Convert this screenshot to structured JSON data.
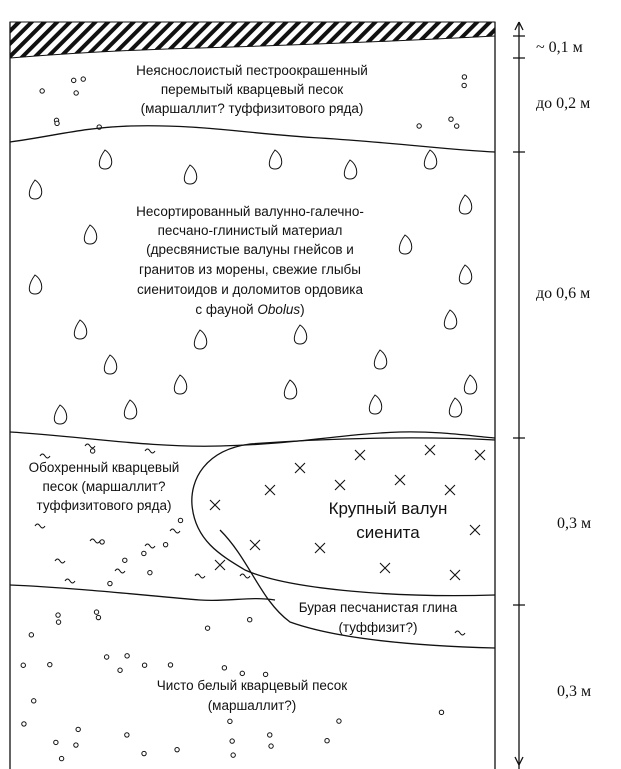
{
  "layers": [
    {
      "lines": [
        "Неяснослоистый пестроокрашенный",
        "перемытый кварцевый песок",
        "(маршаллит? туффизитового ряда)"
      ]
    },
    {
      "lines": [
        "Несортированный валунно-галечно-",
        "песчано-глинистый материал",
        "(дресвянистые валуны гнейсов и",
        "гранитов из морены, свежие глыбы",
        "сиенитоидов и доломитов ордовика"
      ],
      "last_line": [
        "с фауной ",
        "Obolus",
        ")"
      ]
    },
    {
      "lines": [
        "Обохренный кварцевый",
        "песок (маршаллит?",
        "туффизитового ряда)"
      ]
    },
    {
      "lines": [
        "Крупный валун",
        "сиенита"
      ]
    },
    {
      "lines": [
        "Бурая песчанистая глина",
        "(туффизит?)"
      ]
    },
    {
      "lines": [
        "Чисто белый кварцевый песок",
        "(маршаллит?)"
      ]
    }
  ],
  "scale": [
    "~ 0,1 м",
    "до 0,2 м",
    "до 0,6 м",
    "0,3 м",
    "0,3 м"
  ]
}
